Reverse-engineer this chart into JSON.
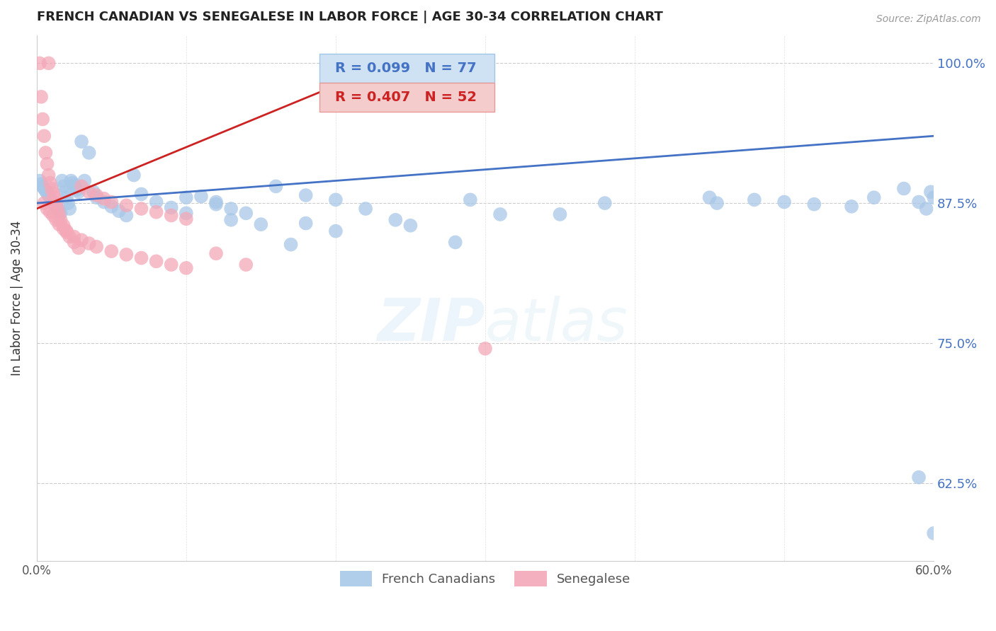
{
  "title": "FRENCH CANADIAN VS SENEGALESE IN LABOR FORCE | AGE 30-34 CORRELATION CHART",
  "source": "Source: ZipAtlas.com",
  "ylabel": "In Labor Force | Age 30-34",
  "xmin": 0.0,
  "xmax": 0.6,
  "ymin": 0.555,
  "ymax": 1.025,
  "yticks": [
    0.625,
    0.75,
    0.875,
    1.0
  ],
  "ytick_labels": [
    "62.5%",
    "75.0%",
    "87.5%",
    "100.0%"
  ],
  "xticks": [
    0.0,
    0.1,
    0.2,
    0.3,
    0.4,
    0.5,
    0.6
  ],
  "xtick_labels": [
    "0.0%",
    "",
    "",
    "",
    "",
    "",
    "60.0%"
  ],
  "blue_R": 0.099,
  "blue_N": 77,
  "pink_R": 0.407,
  "pink_N": 52,
  "blue_color": "#a8c8e8",
  "pink_color": "#f4a8b8",
  "blue_line_color": "#4472c4",
  "pink_line_color": "#cc2222",
  "legend_box_blue": "#cfe2f3",
  "legend_box_pink": "#f4cccc",
  "legend_border_blue": "#9fc5e8",
  "legend_border_pink": "#ea9999",
  "watermark_color": "#ddeeff",
  "blue_scatter_x": [
    0.002,
    0.003,
    0.004,
    0.005,
    0.006,
    0.007,
    0.008,
    0.009,
    0.01,
    0.011,
    0.012,
    0.013,
    0.014,
    0.015,
    0.016,
    0.017,
    0.018,
    0.019,
    0.02,
    0.021,
    0.022,
    0.023,
    0.024,
    0.025,
    0.026,
    0.027,
    0.028,
    0.03,
    0.032,
    0.035,
    0.038,
    0.04,
    0.045,
    0.05,
    0.055,
    0.06,
    0.065,
    0.07,
    0.08,
    0.09,
    0.1,
    0.11,
    0.12,
    0.13,
    0.14,
    0.16,
    0.18,
    0.2,
    0.22,
    0.25,
    0.28,
    0.31,
    0.35,
    0.38,
    0.29,
    0.18,
    0.2,
    0.24,
    0.1,
    0.12,
    0.13,
    0.15,
    0.17,
    0.45,
    0.48,
    0.5,
    0.52,
    0.545,
    0.56,
    0.58,
    0.59,
    0.595,
    0.598,
    0.6,
    0.455,
    0.59,
    0.6
  ],
  "blue_scatter_y": [
    0.895,
    0.892,
    0.89,
    0.888,
    0.886,
    0.884,
    0.882,
    0.88,
    0.878,
    0.876,
    0.874,
    0.872,
    0.87,
    0.868,
    0.866,
    0.895,
    0.89,
    0.885,
    0.88,
    0.875,
    0.87,
    0.895,
    0.893,
    0.891,
    0.889,
    0.887,
    0.885,
    0.93,
    0.895,
    0.92,
    0.885,
    0.88,
    0.876,
    0.872,
    0.868,
    0.864,
    0.9,
    0.883,
    0.876,
    0.871,
    0.866,
    0.881,
    0.876,
    0.87,
    0.866,
    0.89,
    0.882,
    0.878,
    0.87,
    0.855,
    0.84,
    0.865,
    0.865,
    0.875,
    0.878,
    0.857,
    0.85,
    0.86,
    0.88,
    0.874,
    0.86,
    0.856,
    0.838,
    0.88,
    0.878,
    0.876,
    0.874,
    0.872,
    0.88,
    0.888,
    0.876,
    0.87,
    0.885,
    0.88,
    0.875,
    0.63,
    0.58
  ],
  "pink_scatter_x": [
    0.002,
    0.003,
    0.004,
    0.005,
    0.006,
    0.007,
    0.008,
    0.009,
    0.01,
    0.011,
    0.012,
    0.013,
    0.014,
    0.015,
    0.016,
    0.018,
    0.02,
    0.022,
    0.025,
    0.028,
    0.03,
    0.035,
    0.04,
    0.045,
    0.05,
    0.06,
    0.07,
    0.08,
    0.09,
    0.1,
    0.005,
    0.007,
    0.009,
    0.011,
    0.013,
    0.015,
    0.018,
    0.02,
    0.025,
    0.03,
    0.035,
    0.04,
    0.05,
    0.06,
    0.07,
    0.08,
    0.09,
    0.1,
    0.12,
    0.14,
    0.3,
    0.008
  ],
  "pink_scatter_y": [
    1.0,
    0.97,
    0.95,
    0.935,
    0.92,
    0.91,
    0.9,
    0.893,
    0.888,
    0.884,
    0.88,
    0.875,
    0.87,
    0.865,
    0.86,
    0.855,
    0.85,
    0.845,
    0.84,
    0.835,
    0.89,
    0.885,
    0.882,
    0.879,
    0.876,
    0.873,
    0.87,
    0.867,
    0.864,
    0.861,
    0.875,
    0.87,
    0.867,
    0.864,
    0.86,
    0.856,
    0.852,
    0.849,
    0.845,
    0.842,
    0.839,
    0.836,
    0.832,
    0.829,
    0.826,
    0.823,
    0.82,
    0.817,
    0.83,
    0.82,
    0.745,
    1.0
  ],
  "blue_trend_x": [
    0.0,
    0.6
  ],
  "blue_trend_y": [
    0.875,
    0.935
  ],
  "pink_trend_x": [
    0.0,
    0.2
  ],
  "pink_trend_y": [
    0.87,
    0.98
  ]
}
